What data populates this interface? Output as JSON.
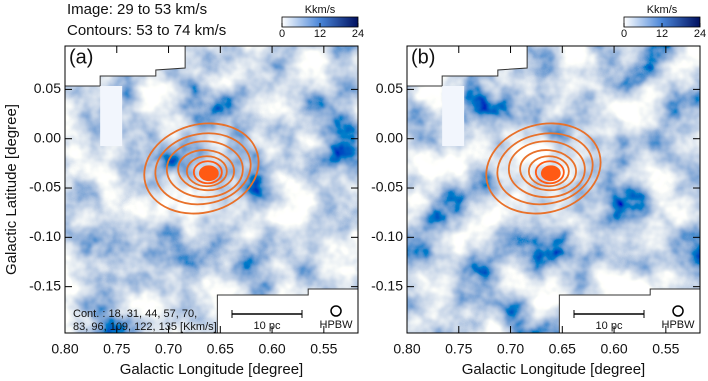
{
  "header": {
    "image_range": "Image: 29 to 53 km/s",
    "contour_range": "Contours: 53 to 74 km/s"
  },
  "chart_data": [
    {
      "type": "map",
      "panel_label": "(a)",
      "xlabel": "Galactic Longitude [degree]",
      "ylabel": "Galactic Latitude [degree]",
      "xlim": [
        0.8,
        0.517
      ],
      "ylim": [
        -0.197,
        0.094
      ],
      "xticks": [
        {
          "value": 0.8,
          "label": "0.80"
        },
        0.75,
        {
          "value": 0.7,
          "label": "0.70"
        },
        0.65,
        {
          "value": 0.6,
          "label": "0.60"
        },
        0.55
      ],
      "yticks": [
        0.05,
        {
          "value": 0,
          "label": "0.00"
        },
        -0.05,
        {
          "value": -0.1,
          "label": "-0.10"
        },
        -0.15
      ],
      "colorbar": {
        "label": "Kkm/s",
        "lim": [
          0,
          24
        ],
        "ticks": [
          0,
          12,
          24
        ]
      },
      "contour_note": [
        "Cont. : 18, 31, 44, 57, 70,",
        "83, 96, 109, 122, 135 [Kkm/s]"
      ],
      "scale_bar": "10 pc",
      "beam": "HPBW"
    },
    {
      "type": "map",
      "panel_label": "(b)",
      "xlabel": "Galactic Longitude [degree]",
      "xlim": [
        0.8,
        0.517
      ],
      "ylim": [
        -0.197,
        0.094
      ],
      "xticks": [
        {
          "value": 0.8,
          "label": "0.80"
        },
        0.75,
        {
          "value": 0.7,
          "label": "0.70"
        },
        0.65,
        {
          "value": 0.6,
          "label": "0.60"
        },
        0.55
      ],
      "yticks": [
        0.05,
        {
          "value": 0,
          "label": "0.00"
        },
        -0.05,
        {
          "value": -0.1,
          "label": "-0.10"
        },
        -0.15
      ],
      "colorbar": {
        "label": "Kkm/s",
        "lim": [
          0,
          24
        ],
        "ticks": [
          0,
          12,
          24
        ]
      },
      "scale_bar": "10 pc",
      "beam": "HPBW"
    }
  ]
}
